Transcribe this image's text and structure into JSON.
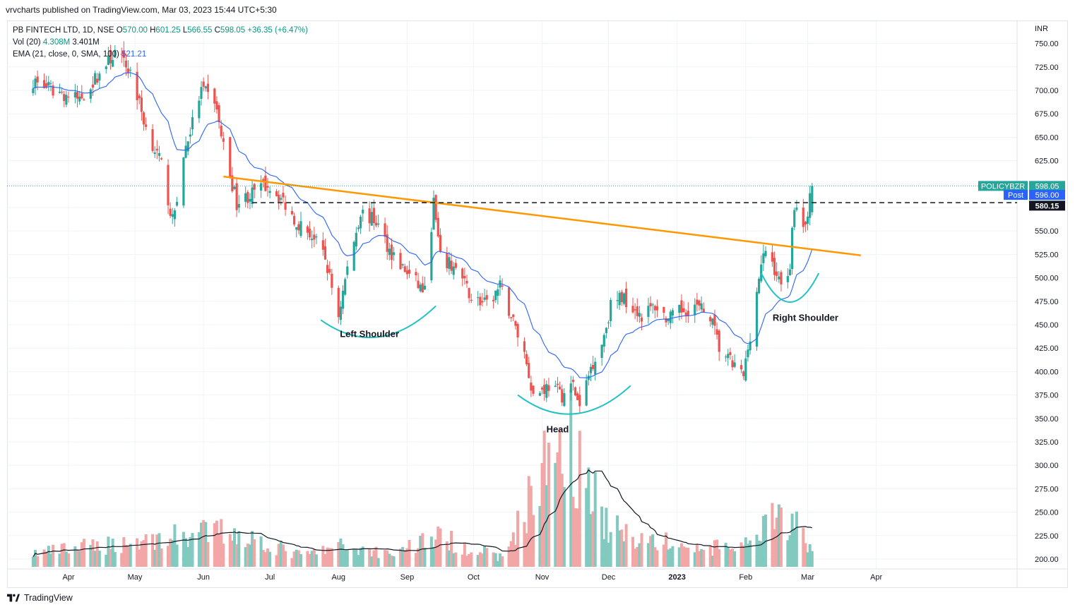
{
  "publisher": "vrvcharts published on TradingView.com, Mar 03, 2023 15:44 UTC+5:30",
  "legend": {
    "symbol": "PB FINTECH LTD, 1D, NSE",
    "o_label": "O",
    "o": "570.00",
    "h_label": "H",
    "h": "601.25",
    "l_label": "L",
    "l": "566.55",
    "c_label": "C",
    "c": "598.05",
    "change": "+36.35 (+6.47%)",
    "vol_label": "Vol (20)",
    "vol1": "4.308M",
    "vol2": "3.401M",
    "ema_label": "EMA (21, close, 0, SMA, 100)",
    "ema": "521.21"
  },
  "footer_brand": "TradingView",
  "colors": {
    "up": "#26a69a",
    "down": "#ef5350",
    "up_vol": "#82c9bf",
    "down_vol": "#f2a7a6",
    "ema": "#2962ff",
    "trendline": "#ff9800",
    "curve": "#22c1c3",
    "badge_symbol": "#26a69a",
    "badge_post": "#2962ff",
    "badge_dark": "#131722"
  },
  "chart_data": {
    "type": "candlestick",
    "currency": "INR",
    "y_ticks": [
      "750.00",
      "725.00",
      "700.00",
      "675.00",
      "650.00",
      "625.00",
      "600.00",
      "575.00",
      "550.00",
      "525.00",
      "500.00",
      "475.00",
      "450.00",
      "425.00",
      "400.00",
      "375.00",
      "350.00",
      "325.00",
      "300.00",
      "275.00",
      "250.00",
      "225.00",
      "200.00"
    ],
    "x_ticks": [
      "Apr",
      "May",
      "Jun",
      "Jul",
      "Aug",
      "Sep",
      "Oct",
      "Nov",
      "Dec",
      "2023",
      "Feb",
      "Mar",
      "Apr"
    ],
    "price_labels": [
      {
        "name": "POLICYBZR",
        "value": "598.05"
      },
      {
        "name": "Post",
        "value": "596.00"
      },
      {
        "name": "",
        "value": "580.15"
      }
    ],
    "annotations": [
      "Left Shoulder",
      "Head",
      "Right Shoulder"
    ],
    "close_waypoints": [
      [
        "2022-03-16",
        710
      ],
      [
        "2022-03-25",
        700
      ],
      [
        "2022-04-06",
        690
      ],
      [
        "2022-04-14",
        715
      ],
      [
        "2022-04-22",
        740
      ],
      [
        "2022-04-29",
        720
      ],
      [
        "2022-05-06",
        660
      ],
      [
        "2022-05-13",
        620
      ],
      [
        "2022-05-18",
        560
      ],
      [
        "2022-05-24",
        640
      ],
      [
        "2022-05-31",
        700
      ],
      [
        "2022-06-06",
        690
      ],
      [
        "2022-06-10",
        640
      ],
      [
        "2022-06-16",
        580
      ],
      [
        "2022-06-23",
        590
      ],
      [
        "2022-06-30",
        600
      ],
      [
        "2022-07-06",
        585
      ],
      [
        "2022-07-13",
        560
      ],
      [
        "2022-07-20",
        545
      ],
      [
        "2022-07-26",
        520
      ],
      [
        "2022-08-01",
        460
      ],
      [
        "2022-08-05",
        510
      ],
      [
        "2022-08-11",
        570
      ],
      [
        "2022-08-18",
        560
      ],
      [
        "2022-08-24",
        530
      ],
      [
        "2022-08-30",
        510
      ],
      [
        "2022-09-05",
        495
      ],
      [
        "2022-09-09",
        485
      ],
      [
        "2022-09-13",
        580
      ],
      [
        "2022-09-16",
        520
      ],
      [
        "2022-09-23",
        510
      ],
      [
        "2022-09-30",
        480
      ],
      [
        "2022-10-07",
        470
      ],
      [
        "2022-10-13",
        490
      ],
      [
        "2022-10-18",
        460
      ],
      [
        "2022-10-24",
        420
      ],
      [
        "2022-10-28",
        375
      ],
      [
        "2022-11-04",
        385
      ],
      [
        "2022-11-10",
        375
      ],
      [
        "2022-11-15",
        385
      ],
      [
        "2022-11-18",
        360
      ],
      [
        "2022-11-23",
        405
      ],
      [
        "2022-11-28",
        430
      ],
      [
        "2022-12-02",
        470
      ],
      [
        "2022-12-07",
        480
      ],
      [
        "2022-12-12",
        470
      ],
      [
        "2022-12-16",
        460
      ],
      [
        "2022-12-22",
        470
      ],
      [
        "2022-12-28",
        455
      ],
      [
        "2023-01-03",
        465
      ],
      [
        "2023-01-09",
        470
      ],
      [
        "2023-01-16",
        460
      ],
      [
        "2023-01-20",
        425
      ],
      [
        "2023-01-25",
        410
      ],
      [
        "2023-01-31",
        395
      ],
      [
        "2023-02-03",
        440
      ],
      [
        "2023-02-07",
        500
      ],
      [
        "2023-02-10",
        530
      ],
      [
        "2023-02-14",
        510
      ],
      [
        "2023-02-17",
        490
      ],
      [
        "2023-02-21",
        515
      ],
      [
        "2023-02-23",
        580
      ],
      [
        "2023-02-27",
        555
      ],
      [
        "2023-03-01",
        570
      ],
      [
        "2023-03-03",
        598
      ]
    ],
    "volume_waypoints": [
      [
        "2022-03-16",
        12
      ],
      [
        "2022-06-13",
        32
      ],
      [
        "2022-07-15",
        10
      ],
      [
        "2022-08-02",
        18
      ],
      [
        "2022-08-25",
        12
      ],
      [
        "2022-09-13",
        27
      ],
      [
        "2022-10-14",
        8
      ],
      [
        "2022-11-14",
        136
      ],
      [
        "2022-11-15",
        70
      ],
      [
        "2022-11-16",
        90
      ],
      [
        "2022-11-22",
        78
      ],
      [
        "2022-11-24",
        88
      ],
      [
        "2022-11-28",
        40
      ],
      [
        "2022-12-07",
        30
      ],
      [
        "2023-01-10",
        15
      ],
      [
        "2023-02-06",
        20
      ],
      [
        "2023-02-10",
        38
      ],
      [
        "2023-02-14",
        40
      ],
      [
        "2023-02-22",
        42
      ],
      [
        "2023-03-03",
        14
      ]
    ]
  }
}
